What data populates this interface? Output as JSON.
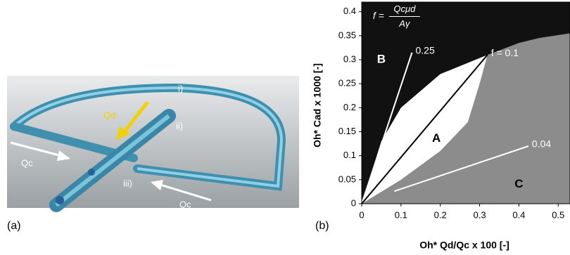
{
  "panels": {
    "a": "(a)",
    "b": "(b)"
  },
  "photo": {
    "labels": {
      "i": "i)",
      "ii": "ii)",
      "iii": "iii)",
      "qd": "Qd",
      "qc_left": "Qc",
      "qc_right": "Qc"
    }
  },
  "chart_data": {
    "type": "region-map",
    "xlabel": "Oh* Qd/Qc x 100 [-]",
    "ylabel": "Oh* Cad x 1000 [-]",
    "formula": {
      "lhs": "f =",
      "numerator": "Qcμd",
      "denominator": "Aγ"
    },
    "xlim": [
      0,
      0.53
    ],
    "ylim": [
      0,
      0.42
    ],
    "xticks": [
      0,
      0.1,
      0.2,
      0.3,
      0.4,
      0.5
    ],
    "yticks": [
      0,
      0.05,
      0.1,
      0.15,
      0.2,
      0.25,
      0.3,
      0.35,
      0.4
    ],
    "background": "#8c8c8c",
    "regions": [
      {
        "name": "B",
        "color": "#111111",
        "x": [
          0,
          0.05,
          0.1,
          0.2,
          0.32,
          0.4,
          0.45,
          0.53,
          0.53,
          0
        ],
        "y": [
          0,
          0.13,
          0.2,
          0.27,
          0.31,
          0.335,
          0.345,
          0.355,
          0.42,
          0.42
        ]
      },
      {
        "name": "A",
        "color": "#ffffff",
        "x": [
          0,
          0.05,
          0.1,
          0.2,
          0.32,
          0.3,
          0.27,
          0.2,
          0.1,
          0
        ],
        "y": [
          0,
          0.13,
          0.2,
          0.27,
          0.31,
          0.25,
          0.17,
          0.11,
          0.05,
          0
        ]
      },
      {
        "name": "C",
        "color": "#8c8c8c",
        "x": [],
        "y": []
      }
    ],
    "series": [
      {
        "name": "0.25",
        "color": "#ffffff",
        "x": [
          0,
          0.128
        ],
        "y": [
          0,
          0.315
        ]
      },
      {
        "name": "f = 0.1",
        "color": "#000000",
        "x": [
          0,
          0.32
        ],
        "y": [
          0,
          0.31
        ]
      },
      {
        "name": "0.04",
        "color": "#ffffff",
        "x": [
          0.083,
          0.424
        ],
        "y": [
          0.026,
          0.12
        ]
      }
    ]
  }
}
